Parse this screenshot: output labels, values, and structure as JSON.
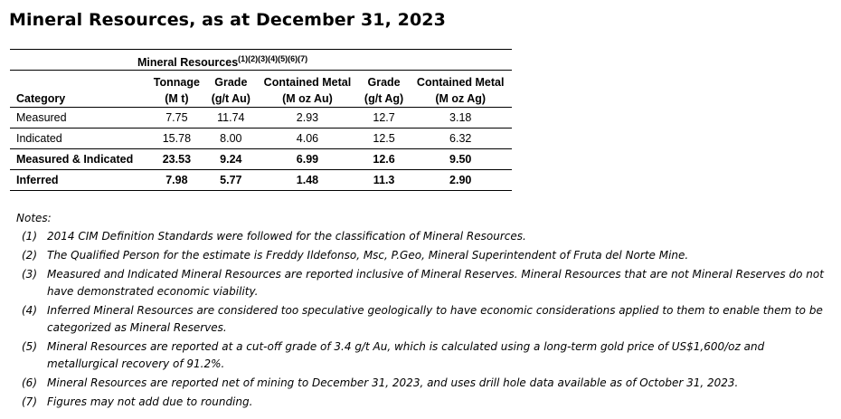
{
  "title": "Mineral Resources, as at December 31, 2023",
  "table": {
    "group_label": "Mineral Resources",
    "group_footnotes": "(1)(2)(3)(4)(5)(6)(7)",
    "columns": [
      {
        "line1": "",
        "line2": "Category"
      },
      {
        "line1": "Tonnage",
        "line2": "(M t)"
      },
      {
        "line1": "Grade",
        "line2": "(g/t Au)"
      },
      {
        "line1": "Contained Metal",
        "line2": "(M oz Au)"
      },
      {
        "line1": "Grade",
        "line2": "(g/t Ag)"
      },
      {
        "line1": "Contained Metal",
        "line2": "(M oz Ag)"
      }
    ],
    "rows": [
      {
        "category": "Measured",
        "tonnage": "7.75",
        "grade_au": "11.74",
        "metal_au": "2.93",
        "grade_ag": "12.7",
        "metal_ag": "3.18",
        "bold": false
      },
      {
        "category": "Indicated",
        "tonnage": "15.78",
        "grade_au": "8.00",
        "metal_au": "4.06",
        "grade_ag": "12.5",
        "metal_ag": "6.32",
        "bold": false
      },
      {
        "category": "Measured & Indicated",
        "tonnage": "23.53",
        "grade_au": "9.24",
        "metal_au": "6.99",
        "grade_ag": "12.6",
        "metal_ag": "9.50",
        "bold": true
      },
      {
        "category": "Inferred",
        "tonnage": "7.98",
        "grade_au": "5.77",
        "metal_au": "1.48",
        "grade_ag": "11.3",
        "metal_ag": "2.90",
        "bold": true
      }
    ]
  },
  "notes": {
    "title": "Notes:",
    "items": [
      {
        "num": "(1)",
        "text": "2014 CIM Definition Standards were followed for the classification of Mineral Resources."
      },
      {
        "num": "(2)",
        "text": "The Qualified Person for the estimate is Freddy Ildefonso, Msc, P.Geo, Mineral Superintendent of Fruta del Norte Mine."
      },
      {
        "num": "(3)",
        "text": "Measured and Indicated Mineral Resources are reported inclusive of Mineral Reserves. Mineral Resources that are not Mineral Reserves do not have demonstrated economic viability."
      },
      {
        "num": "(4)",
        "text": "Inferred Mineral Resources are considered too speculative geologically to have economic considerations applied to them to enable them to be categorized as Mineral Reserves."
      },
      {
        "num": "(5)",
        "text": "Mineral Resources are reported at a cut-off grade of 3.4 g/t Au, which is calculated using a long-term gold price of US$1,600/oz and metallurgical recovery of 91.2%."
      },
      {
        "num": "(6)",
        "text": "Mineral Resources are reported net of mining to December 31, 2023, and uses drill hole data available as of October 31, 2023."
      },
      {
        "num": "(7)",
        "text": "Figures may not add due to rounding."
      }
    ]
  }
}
